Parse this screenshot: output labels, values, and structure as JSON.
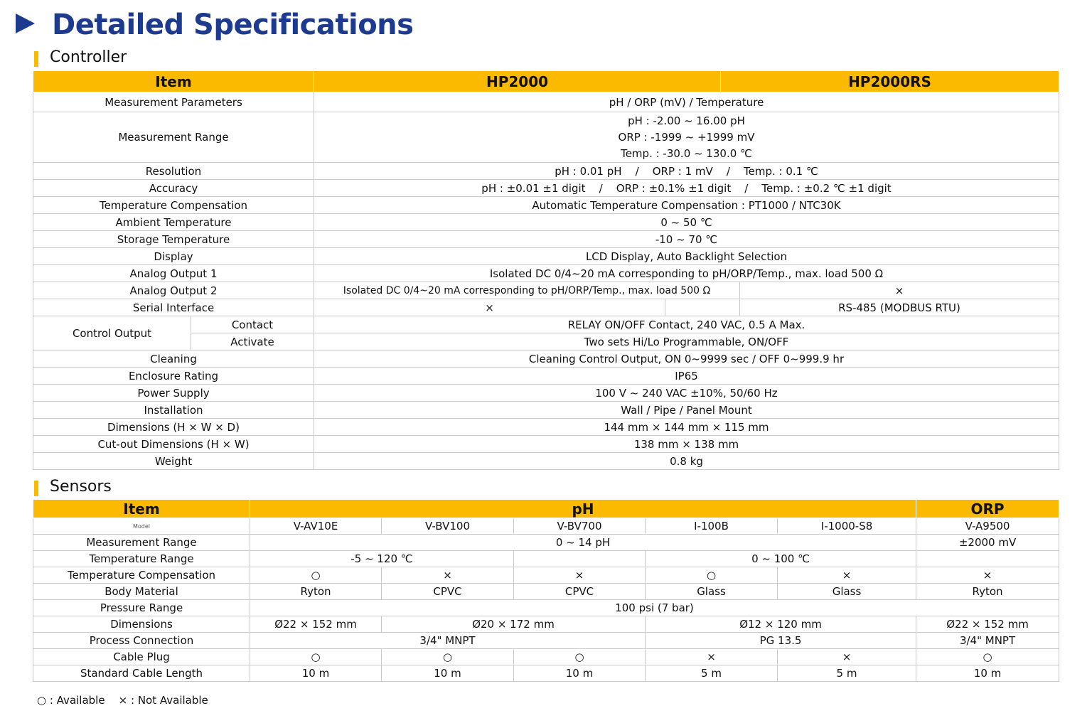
{
  "header": {
    "title": "Detailed Specifications"
  },
  "controller": {
    "heading": "Controller",
    "columns": [
      "Item",
      "HP2000",
      "HP2000RS"
    ],
    "rows": [
      {
        "item": "Measurement Parameters",
        "values": [
          "pH / ORP (mV) / Temperature"
        ]
      },
      {
        "item": "Measurement Range",
        "values": [
          "pH : -2.00 ~ 16.00 pH",
          "ORP : -1999 ~ +1999 mV",
          "Temp. : -30.0 ~ 130.0 ℃"
        ]
      },
      {
        "item": "Resolution",
        "values": [
          "pH : 0.01 pH    /    ORP : 1 mV    /    Temp. : 0.1 ℃"
        ]
      },
      {
        "item": "Accuracy",
        "values": [
          "pH : ±0.01 ±1 digit    /    ORP : ±0.1% ±1 digit    /    Temp. : ±0.2 ℃ ±1 digit"
        ]
      },
      {
        "item": "Temperature Compensation",
        "values": [
          "Automatic Temperature Compensation : PT1000 / NTC30K"
        ]
      },
      {
        "item": "Ambient Temperature",
        "values": [
          "0 ~ 50 ℃"
        ]
      },
      {
        "item": "Storage Temperature",
        "values": [
          "-10 ~ 70 ℃"
        ]
      },
      {
        "item": "Display",
        "values": [
          "LCD Display, Auto Backlight Selection"
        ]
      },
      {
        "item": "Analog Output 1",
        "values": [
          "Isolated DC 0/4~20 mA corresponding to pH/ORP/Temp., max. load 500 Ω"
        ]
      },
      {
        "item": "Analog Output 2",
        "values": [
          "Isolated DC 0/4~20 mA corresponding to pH/ORP/Temp., max. load 500 Ω",
          "×"
        ]
      },
      {
        "item": "Serial Interface",
        "values": [
          "×",
          "RS-485 (MODBUS RTU)"
        ]
      },
      {
        "item": "Control Output",
        "sub": [
          {
            "item": "Contact",
            "values": [
              "RELAY ON/OFF Contact, 240 VAC, 0.5 A Max."
            ]
          },
          {
            "item": "Activate",
            "values": [
              "Two sets Hi/Lo Programmable, ON/OFF"
            ]
          }
        ]
      },
      {
        "item": "Cleaning",
        "values": [
          "Cleaning Control Output, ON 0~9999 sec / OFF 0~999.9 hr"
        ]
      },
      {
        "item": "Enclosure Rating",
        "values": [
          "IP65"
        ]
      },
      {
        "item": "Power Supply",
        "values": [
          "100 V ~ 240 VAC ±10%, 50/60 Hz"
        ]
      },
      {
        "item": "Installation",
        "values": [
          "Wall / Pipe / Panel Mount"
        ]
      },
      {
        "item": "Dimensions (H × W × D)",
        "values": [
          "144 mm × 144 mm × 115 mm"
        ]
      },
      {
        "item": "Cut-out Dimensions (H × W)",
        "values": [
          "138 mm × 138 mm"
        ]
      },
      {
        "item": "Weight",
        "values": [
          "0.8 kg"
        ]
      }
    ]
  },
  "sensors": {
    "heading": "Sensors",
    "columns": [
      "Item",
      "pH",
      "ORP"
    ],
    "model_label": "Model",
    "models": [
      "V-AV10E",
      "V-BV100",
      "V-BV700",
      "I-100B",
      "I-1000-S8",
      "V-A9500"
    ],
    "rows": [
      {
        "item": "Measurement Range",
        "values": [
          "0 ~ 14 pH",
          "±2000 mV"
        ]
      },
      {
        "item": "Temperature Range",
        "values": [
          "-5 ~ 120 ℃",
          "0 ~ 100 ℃"
        ]
      },
      {
        "item": "Temperature Compensation",
        "values": [
          "○",
          "×",
          "×",
          "○",
          "×",
          "×"
        ]
      },
      {
        "item": "Body Material",
        "values": [
          "Ryton",
          "CPVC",
          "CPVC",
          "Glass",
          "Glass",
          "Ryton"
        ]
      },
      {
        "item": "Pressure Range",
        "values": [
          "100 psi (7 bar)"
        ]
      },
      {
        "item": "Dimensions",
        "values": [
          "Ø22 × 152 mm",
          "Ø20 × 172 mm",
          "Ø12 × 120 mm",
          "Ø22 × 152 mm"
        ]
      },
      {
        "item": "Process Connection",
        "values": [
          "3/4\" MNPT",
          "PG 13.5",
          "3/4\" MNPT"
        ]
      },
      {
        "item": "Cable Plug",
        "values": [
          "○",
          "○",
          "○",
          "×",
          "×",
          "○"
        ]
      },
      {
        "item": "Standard Cable Length",
        "values": [
          "10 m",
          "10 m",
          "10 m",
          "5 m",
          "5 m",
          "10 m"
        ]
      }
    ]
  },
  "legend": {
    "available": "○ : Available",
    "not_available": "× : Not Available"
  }
}
